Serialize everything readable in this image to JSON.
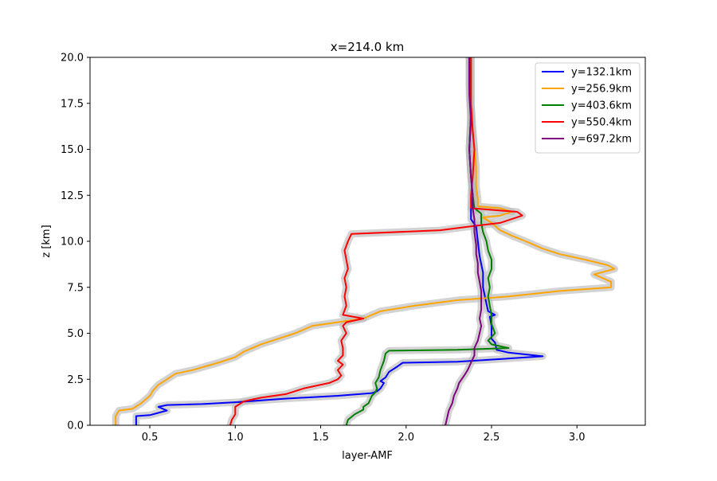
{
  "chart_data": {
    "type": "line",
    "title": "x=214.0 km",
    "xlabel": "layer-AMF",
    "ylabel": "z [km]",
    "xlim": [
      0.15,
      3.4
    ],
    "ylim": [
      0,
      20
    ],
    "xticks": [
      0.5,
      1.0,
      1.5,
      2.0,
      2.5,
      3.0
    ],
    "yticks": [
      0.0,
      2.5,
      5.0,
      7.5,
      10.0,
      12.5,
      15.0,
      17.5,
      20.0
    ],
    "grid": false,
    "legend_position": "top-right",
    "uncertainty_band_color": "#bbbbbb",
    "series": [
      {
        "name": "y=132.1km",
        "color": "#0000ff",
        "points": [
          [
            0.42,
            0
          ],
          [
            0.42,
            0.5
          ],
          [
            0.5,
            0.55
          ],
          [
            0.6,
            0.8
          ],
          [
            0.55,
            1.0
          ],
          [
            0.6,
            1.1
          ],
          [
            0.8,
            1.15
          ],
          [
            1.0,
            1.25
          ],
          [
            1.3,
            1.45
          ],
          [
            1.6,
            1.6
          ],
          [
            1.8,
            1.75
          ],
          [
            1.83,
            1.85
          ],
          [
            1.85,
            2.0
          ],
          [
            1.87,
            2.3
          ],
          [
            1.85,
            2.4
          ],
          [
            1.88,
            2.6
          ],
          [
            1.9,
            2.9
          ],
          [
            1.95,
            3.2
          ],
          [
            1.98,
            3.4
          ],
          [
            2.3,
            3.45
          ],
          [
            2.8,
            3.75
          ],
          [
            2.6,
            3.95
          ],
          [
            2.53,
            4.1
          ],
          [
            2.52,
            4.5
          ],
          [
            2.5,
            4.7
          ],
          [
            2.5,
            5.4
          ],
          [
            2.49,
            5.9
          ],
          [
            2.52,
            6.0
          ],
          [
            2.48,
            6.2
          ],
          [
            2.47,
            6.6
          ],
          [
            2.45,
            7.5
          ],
          [
            2.45,
            8.3
          ],
          [
            2.43,
            9.2
          ],
          [
            2.42,
            10.0
          ],
          [
            2.41,
            10.8
          ],
          [
            2.38,
            11.2
          ],
          [
            2.38,
            11.8
          ],
          [
            2.39,
            12.5
          ],
          [
            2.38,
            13.5
          ],
          [
            2.37,
            15.0
          ],
          [
            2.38,
            17.0
          ],
          [
            2.37,
            18.5
          ],
          [
            2.37,
            20.0
          ]
        ]
      },
      {
        "name": "y=256.9km",
        "color": "#ffa500",
        "points": [
          [
            0.3,
            0
          ],
          [
            0.3,
            0.5
          ],
          [
            0.32,
            0.8
          ],
          [
            0.4,
            0.9
          ],
          [
            0.45,
            1.2
          ],
          [
            0.5,
            1.6
          ],
          [
            0.52,
            1.9
          ],
          [
            0.55,
            2.2
          ],
          [
            0.6,
            2.5
          ],
          [
            0.65,
            2.8
          ],
          [
            0.75,
            3.0
          ],
          [
            0.9,
            3.4
          ],
          [
            1.0,
            3.7
          ],
          [
            1.05,
            4.0
          ],
          [
            1.15,
            4.4
          ],
          [
            1.25,
            4.7
          ],
          [
            1.35,
            5.0
          ],
          [
            1.45,
            5.4
          ],
          [
            1.6,
            5.6
          ],
          [
            1.75,
            5.8
          ],
          [
            1.85,
            6.2
          ],
          [
            2.05,
            6.5
          ],
          [
            2.3,
            6.8
          ],
          [
            2.6,
            7.0
          ],
          [
            2.9,
            7.3
          ],
          [
            3.2,
            7.5
          ],
          [
            3.2,
            7.8
          ],
          [
            3.1,
            8.2
          ],
          [
            3.22,
            8.5
          ],
          [
            3.18,
            8.7
          ],
          [
            3.05,
            9.0
          ],
          [
            2.9,
            9.3
          ],
          [
            2.8,
            9.6
          ],
          [
            2.7,
            10.0
          ],
          [
            2.62,
            10.3
          ],
          [
            2.55,
            10.6
          ],
          [
            2.5,
            11.0
          ],
          [
            2.45,
            11.3
          ],
          [
            2.55,
            11.4
          ],
          [
            2.62,
            11.6
          ],
          [
            2.55,
            11.8
          ],
          [
            2.42,
            11.9
          ],
          [
            2.42,
            12.3
          ],
          [
            2.41,
            13.0
          ],
          [
            2.41,
            14.0
          ],
          [
            2.4,
            15.0
          ],
          [
            2.39,
            16.0
          ],
          [
            2.38,
            17.5
          ],
          [
            2.38,
            20.0
          ]
        ]
      },
      {
        "name": "y=403.6km",
        "color": "#008000",
        "points": [
          [
            1.65,
            0
          ],
          [
            1.66,
            0.3
          ],
          [
            1.7,
            0.6
          ],
          [
            1.75,
            0.85
          ],
          [
            1.75,
            1.0
          ],
          [
            1.78,
            1.2
          ],
          [
            1.8,
            1.6
          ],
          [
            1.82,
            1.8
          ],
          [
            1.83,
            2.0
          ],
          [
            1.82,
            2.3
          ],
          [
            1.84,
            2.6
          ],
          [
            1.85,
            3.0
          ],
          [
            1.87,
            3.5
          ],
          [
            1.88,
            3.9
          ],
          [
            1.9,
            4.05
          ],
          [
            2.3,
            4.1
          ],
          [
            2.6,
            4.2
          ],
          [
            2.5,
            4.4
          ],
          [
            2.48,
            4.6
          ],
          [
            2.52,
            5.0
          ],
          [
            2.5,
            5.5
          ],
          [
            2.5,
            6.0
          ],
          [
            2.49,
            6.5
          ],
          [
            2.48,
            7.0
          ],
          [
            2.49,
            7.5
          ],
          [
            2.48,
            8.0
          ],
          [
            2.5,
            8.5
          ],
          [
            2.5,
            9.0
          ],
          [
            2.48,
            9.5
          ],
          [
            2.47,
            10.0
          ],
          [
            2.45,
            10.5
          ],
          [
            2.44,
            11.0
          ],
          [
            2.44,
            11.5
          ],
          [
            2.4,
            11.8
          ],
          [
            2.39,
            12.5
          ],
          [
            2.38,
            13.5
          ],
          [
            2.37,
            15.0
          ],
          [
            2.38,
            17.0
          ],
          [
            2.37,
            20.0
          ]
        ]
      },
      {
        "name": "y=550.4km",
        "color": "#ff0000",
        "points": [
          [
            0.97,
            0
          ],
          [
            0.98,
            0.3
          ],
          [
            1.0,
            0.6
          ],
          [
            1.0,
            1.0
          ],
          [
            1.05,
            1.3
          ],
          [
            1.15,
            1.5
          ],
          [
            1.3,
            1.7
          ],
          [
            1.4,
            2.0
          ],
          [
            1.55,
            2.3
          ],
          [
            1.6,
            2.5
          ],
          [
            1.62,
            2.7
          ],
          [
            1.6,
            3.0
          ],
          [
            1.63,
            3.3
          ],
          [
            1.6,
            3.5
          ],
          [
            1.63,
            3.8
          ],
          [
            1.63,
            4.2
          ],
          [
            1.62,
            4.6
          ],
          [
            1.65,
            5.0
          ],
          [
            1.63,
            5.4
          ],
          [
            1.65,
            5.6
          ],
          [
            1.75,
            5.8
          ],
          [
            1.63,
            6.0
          ],
          [
            1.65,
            6.5
          ],
          [
            1.64,
            7.0
          ],
          [
            1.65,
            7.5
          ],
          [
            1.64,
            8.0
          ],
          [
            1.66,
            8.5
          ],
          [
            1.65,
            9.0
          ],
          [
            1.64,
            9.5
          ],
          [
            1.66,
            10.0
          ],
          [
            1.68,
            10.4
          ],
          [
            2.2,
            10.6
          ],
          [
            2.37,
            10.8
          ],
          [
            2.55,
            11.0
          ],
          [
            2.68,
            11.4
          ],
          [
            2.65,
            11.6
          ],
          [
            2.38,
            11.8
          ],
          [
            2.38,
            12.5
          ],
          [
            2.39,
            13.5
          ],
          [
            2.4,
            15.0
          ],
          [
            2.39,
            16.0
          ],
          [
            2.38,
            17.5
          ],
          [
            2.38,
            20.0
          ]
        ]
      },
      {
        "name": "y=697.2km",
        "color": "#800080",
        "points": [
          [
            2.23,
            0
          ],
          [
            2.24,
            0.4
          ],
          [
            2.25,
            0.8
          ],
          [
            2.27,
            1.2
          ],
          [
            2.28,
            1.6
          ],
          [
            2.3,
            2.0
          ],
          [
            2.31,
            2.3
          ],
          [
            2.34,
            2.7
          ],
          [
            2.36,
            3.0
          ],
          [
            2.38,
            3.4
          ],
          [
            2.4,
            3.8
          ],
          [
            2.4,
            4.2
          ],
          [
            2.42,
            4.6
          ],
          [
            2.43,
            5.0
          ],
          [
            2.44,
            5.4
          ],
          [
            2.43,
            5.8
          ],
          [
            2.44,
            6.3
          ],
          [
            2.44,
            6.8
          ],
          [
            2.44,
            7.3
          ],
          [
            2.43,
            7.8
          ],
          [
            2.42,
            8.3
          ],
          [
            2.42,
            8.8
          ],
          [
            2.41,
            9.3
          ],
          [
            2.41,
            9.8
          ],
          [
            2.4,
            10.5
          ],
          [
            2.4,
            11.2
          ],
          [
            2.39,
            11.8
          ],
          [
            2.39,
            12.5
          ],
          [
            2.38,
            13.5
          ],
          [
            2.37,
            15.0
          ],
          [
            2.38,
            16.5
          ],
          [
            2.37,
            18.0
          ],
          [
            2.37,
            20.0
          ]
        ]
      }
    ]
  }
}
